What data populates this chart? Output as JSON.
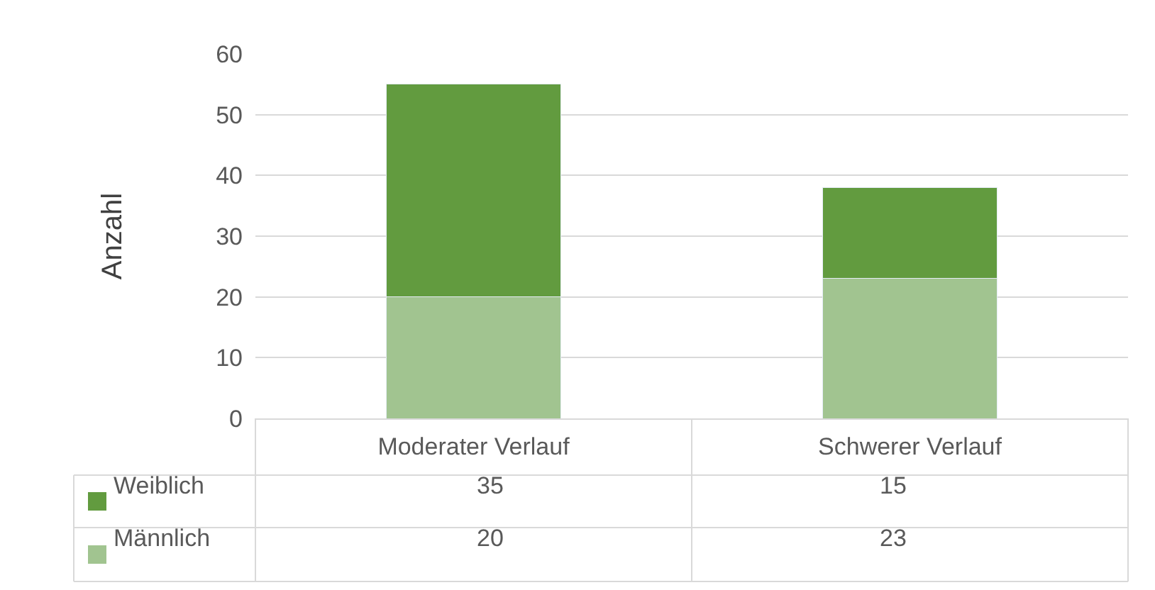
{
  "chart_data": {
    "type": "bar",
    "stacked": true,
    "ylabel": "Anzahl",
    "categories": [
      "Moderater Verlauf",
      "Schwerer Verlauf"
    ],
    "series": [
      {
        "name": "Männlich",
        "color": "#a1c490",
        "values": [
          20,
          23
        ]
      },
      {
        "name": "Weiblich",
        "color": "#629b3f",
        "values": [
          35,
          15
        ]
      }
    ],
    "ylim": [
      0,
      60
    ],
    "yticks": [
      0,
      10,
      20,
      30,
      40,
      50,
      60
    ],
    "grid": "y",
    "data_labels": true,
    "legend": "bottom"
  }
}
